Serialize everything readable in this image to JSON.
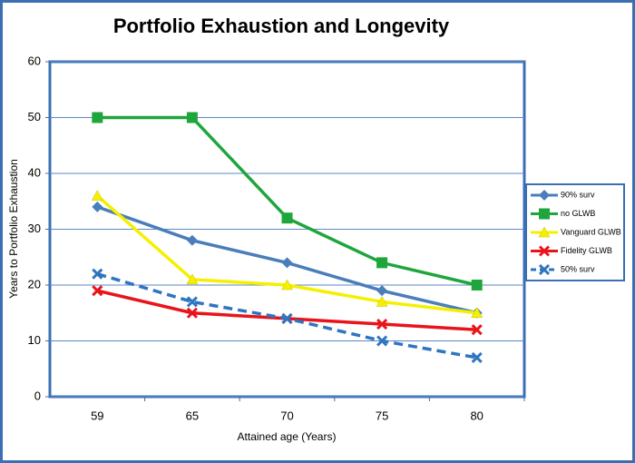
{
  "chart_data": {
    "type": "line",
    "title": "Portfolio Exhaustion and Longevity",
    "x_label": "Attained age (Years)",
    "y_label": "Years to Portfolio Exhaustion",
    "categories": [
      "59",
      "65",
      "70",
      "75",
      "80"
    ],
    "ylim": [
      0,
      60
    ],
    "yticks": [
      0,
      10,
      20,
      30,
      40,
      50,
      60
    ],
    "grid": true,
    "legend": "right",
    "series": [
      {
        "name": "90% surv",
        "color": "#4a7ebb",
        "marker": "diamond",
        "dash": false,
        "values": [
          34,
          28,
          24,
          19,
          15
        ]
      },
      {
        "name": "no GLWB",
        "color": "#1ea63c",
        "marker": "square",
        "dash": false,
        "values": [
          50,
          50,
          32,
          24,
          20
        ]
      },
      {
        "name": "Vanguard GLWB",
        "color": "#f5f000",
        "marker": "triangle",
        "dash": false,
        "values": [
          36,
          21,
          20,
          17,
          15
        ]
      },
      {
        "name": "Fidelity GLWB",
        "color": "#e8141c",
        "marker": "x",
        "dash": false,
        "values": [
          19,
          15,
          14,
          13,
          12
        ]
      },
      {
        "name": "50% surv",
        "color": "#2e75c0",
        "marker": "x",
        "dash": true,
        "values": [
          22,
          17,
          14,
          10,
          7
        ]
      }
    ]
  }
}
